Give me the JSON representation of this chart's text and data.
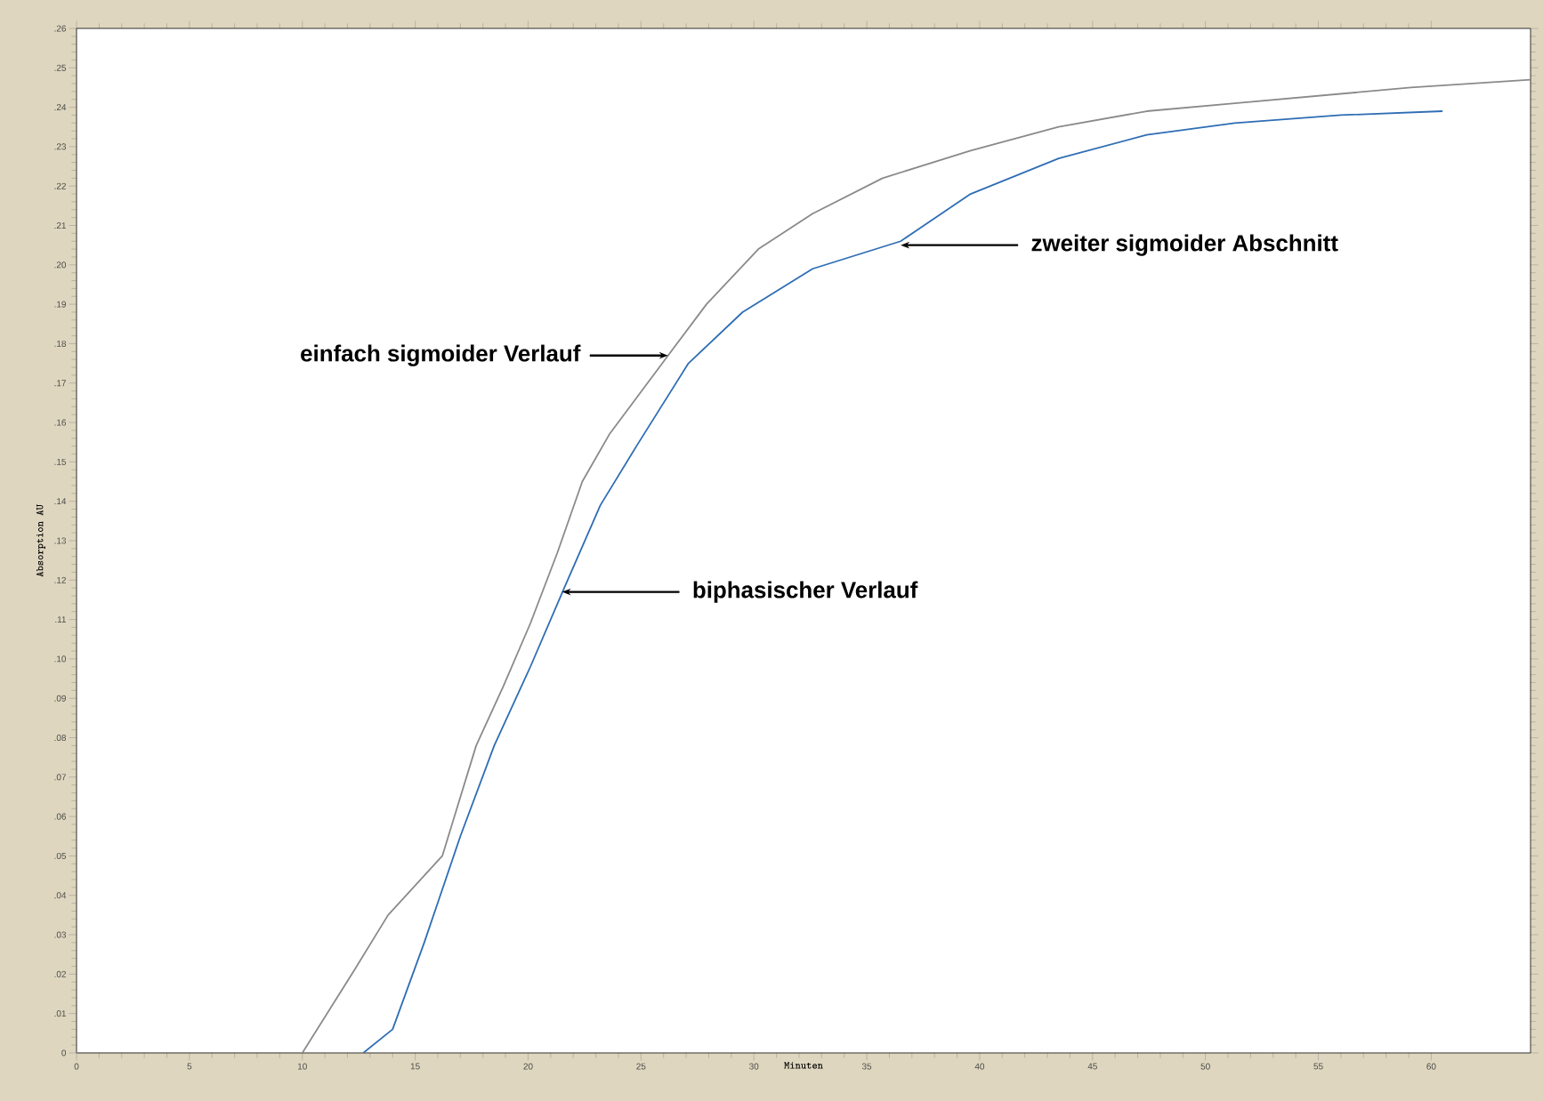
{
  "chart_data": {
    "type": "line",
    "xlabel": "Minuten",
    "ylabel": "Absorption AU",
    "xlim": [
      0,
      64.4
    ],
    "ylim": [
      0,
      0.26
    ],
    "xticks": [
      0,
      5,
      10,
      15,
      20,
      25,
      30,
      35,
      40,
      45,
      50,
      55,
      60
    ],
    "yticks": [
      {
        "value": 0,
        "label": "0"
      },
      {
        "value": 0.01,
        "label": ".01"
      },
      {
        "value": 0.02,
        "label": ".02"
      },
      {
        "value": 0.03,
        "label": ".03"
      },
      {
        "value": 0.04,
        "label": ".04"
      },
      {
        "value": 0.05,
        "label": ".05"
      },
      {
        "value": 0.06,
        "label": ".06"
      },
      {
        "value": 0.07,
        "label": ".07"
      },
      {
        "value": 0.08,
        "label": ".08"
      },
      {
        "value": 0.09,
        "label": ".09"
      },
      {
        "value": 0.1,
        "label": ".10"
      },
      {
        "value": 0.11,
        "label": ".11"
      },
      {
        "value": 0.12,
        "label": ".12"
      },
      {
        "value": 0.13,
        "label": ".13"
      },
      {
        "value": 0.14,
        "label": ".14"
      },
      {
        "value": 0.15,
        "label": ".15"
      },
      {
        "value": 0.16,
        "label": ".16"
      },
      {
        "value": 0.17,
        "label": ".17"
      },
      {
        "value": 0.18,
        "label": ".18"
      },
      {
        "value": 0.19,
        "label": ".19"
      },
      {
        "value": 0.2,
        "label": ".20"
      },
      {
        "value": 0.21,
        "label": ".21"
      },
      {
        "value": 0.22,
        "label": ".22"
      },
      {
        "value": 0.23,
        "label": ".23"
      },
      {
        "value": 0.24,
        "label": ".24"
      },
      {
        "value": 0.25,
        "label": ".25"
      },
      {
        "value": 0.26,
        "label": ".26"
      }
    ],
    "marker": "none",
    "line_style": "solid",
    "series": [
      {
        "color": "#8a8a8a",
        "x": [
          0,
          10,
          12.3,
          13.8,
          16.2,
          17.7,
          18.9,
          20.1,
          21.3,
          22.4,
          23.6,
          26.2,
          27.9,
          30.2,
          32.6,
          35.7,
          39.6,
          43.5,
          47.4,
          51.3,
          59.1,
          64.4
        ],
        "values": [
          0,
          0,
          0.021,
          0.035,
          0.05,
          0.078,
          0.093,
          0.109,
          0.127,
          0.145,
          0.157,
          0.177,
          0.19,
          0.204,
          0.213,
          0.222,
          0.229,
          0.235,
          0.239,
          0.241,
          0.245,
          0.247
        ]
      },
      {
        "color": "#2e6db4",
        "x": [
          12.7,
          14.0,
          15.4,
          17.0,
          18.5,
          20.1,
          21.6,
          23.2,
          24.8,
          27.1,
          29.5,
          32.6,
          36.5,
          39.6,
          43.5,
          47.4,
          51.3,
          56.0,
          60.5
        ],
        "values": [
          0,
          0.006,
          0.028,
          0.055,
          0.078,
          0.098,
          0.118,
          0.139,
          0.154,
          0.175,
          0.188,
          0.199,
          0.206,
          0.218,
          0.227,
          0.233,
          0.236,
          0.238,
          0.239
        ]
      }
    ],
    "annotations": [
      {
        "text": "einfach sigmoider Verlauf",
        "x": 26.2,
        "y": 0.177
      },
      {
        "text": "zweiter sigmoider Abschnitt",
        "x": 36.5,
        "y": 0.205
      },
      {
        "text": "biphasischer Verlauf",
        "x": 21.5,
        "y": 0.117
      }
    ]
  }
}
